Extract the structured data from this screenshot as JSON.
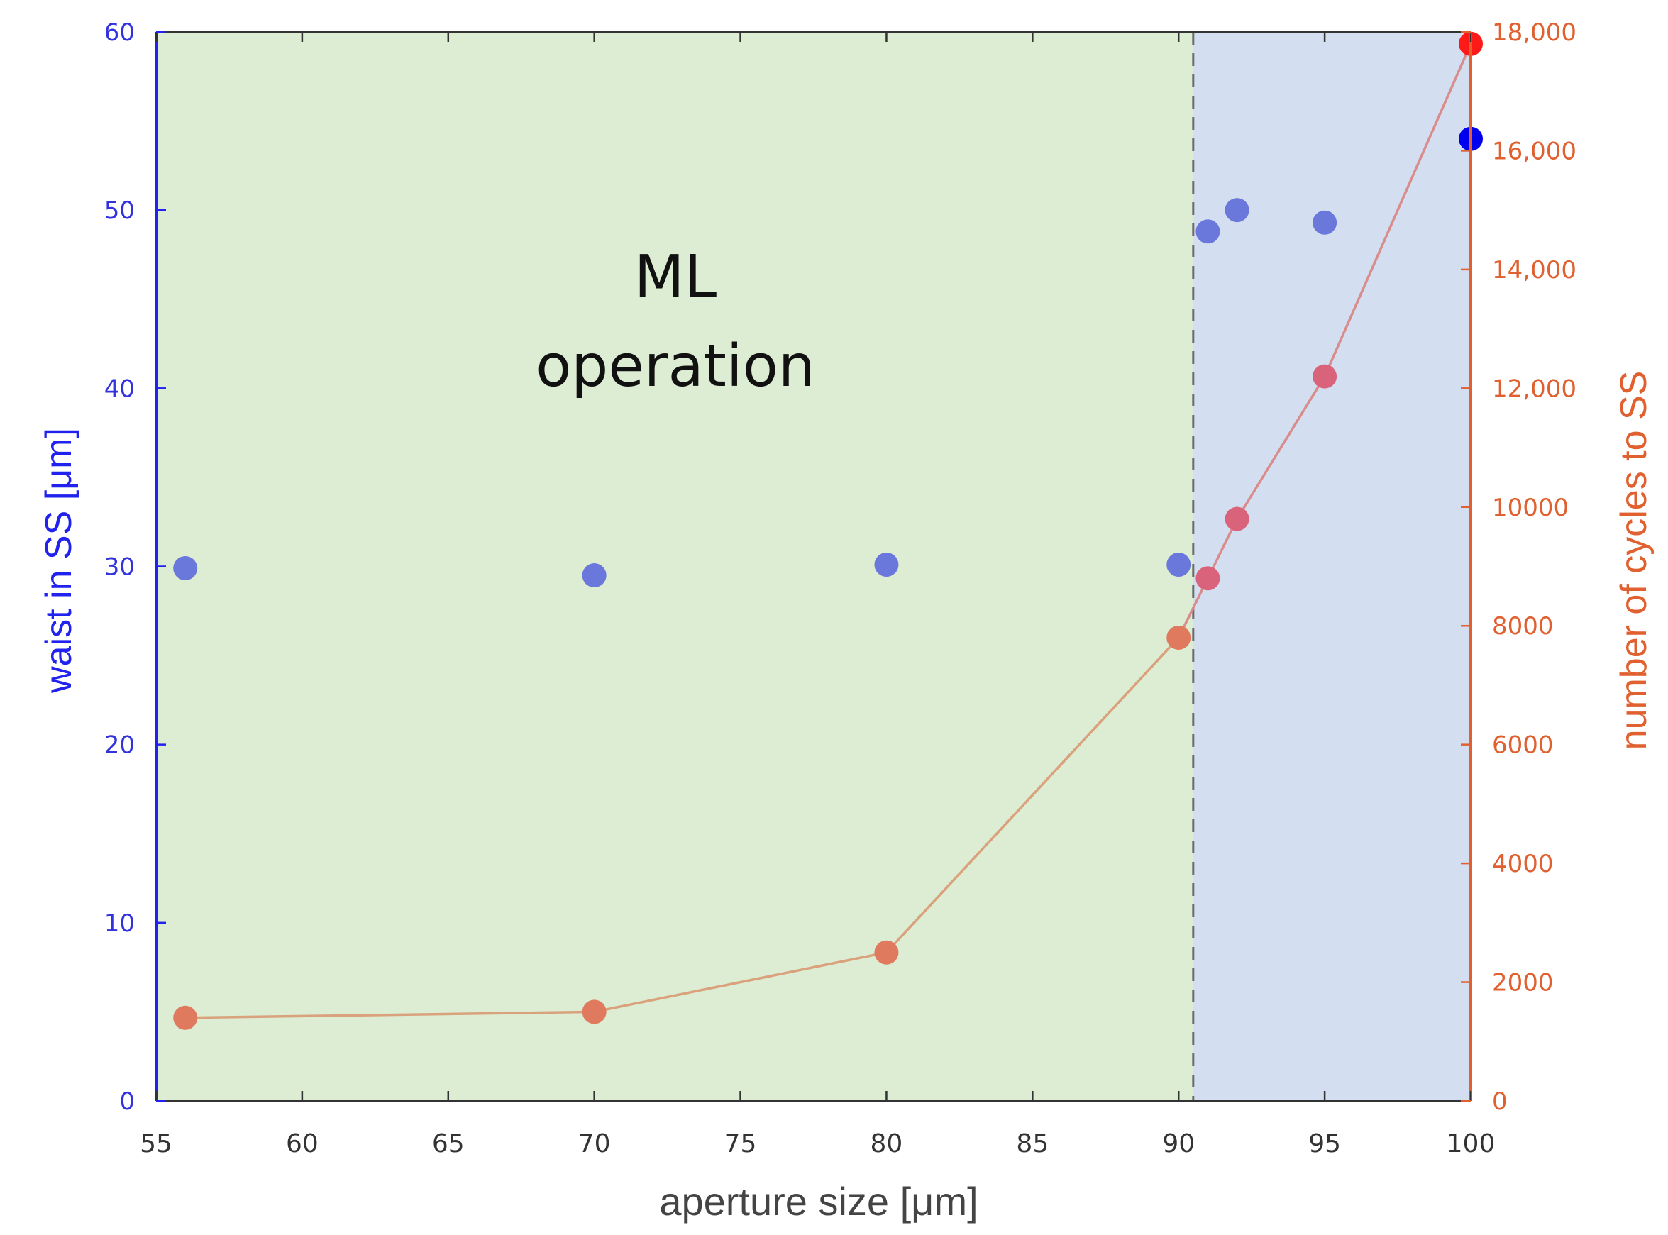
{
  "chart_data": {
    "type": "scatter",
    "xlabel": "aperture size [μm]",
    "ylabel_left": "waist in SS [μm]",
    "ylabel_right": "number of cycles to SS",
    "xlim": [
      55,
      100
    ],
    "ylim_left": [
      0,
      60
    ],
    "ylim_right": [
      0,
      18000
    ],
    "x_ticks": [
      "55",
      "60",
      "65",
      "70",
      "75",
      "80",
      "85",
      "90",
      "95",
      "100"
    ],
    "y_left_ticks": [
      "0",
      "10",
      "20",
      "30",
      "40",
      "50",
      "60"
    ],
    "y_right_ticks": [
      "0",
      "2000",
      "4000",
      "6000",
      "8000",
      "10000",
      "12,000",
      "14,000",
      "16,000",
      "18,000"
    ],
    "regions": [
      {
        "label": "ML operation",
        "x_from": 55,
        "x_to": 90.5,
        "color": "#dcedd3"
      },
      {
        "label": "",
        "x_from": 90.5,
        "x_to": 100,
        "color": "#d3dff0"
      }
    ],
    "boundary_x": 90.5,
    "annotation": {
      "line1": "ML",
      "line2": "operation"
    },
    "series": [
      {
        "name": "waist in SS",
        "axis": "left",
        "color": "#6a78dc",
        "highlight_color": "#0000ee",
        "points": [
          {
            "x": 56,
            "y": 29.9
          },
          {
            "x": 70,
            "y": 29.5
          },
          {
            "x": 80,
            "y": 30.1
          },
          {
            "x": 90,
            "y": 30.1
          },
          {
            "x": 91,
            "y": 48.8
          },
          {
            "x": 92,
            "y": 50.0
          },
          {
            "x": 95,
            "y": 49.3
          },
          {
            "x": 100,
            "y": 54.0,
            "highlight": true
          }
        ]
      },
      {
        "name": "number of cycles to SS",
        "axis": "right",
        "color": "#e07a5f",
        "color_late": "#d9637a",
        "highlight_color": "#ff1a1a",
        "line_color": "#d9a27c",
        "line_color_late": "#d98c8c",
        "points": [
          {
            "x": 56,
            "y": 1400
          },
          {
            "x": 70,
            "y": 1500
          },
          {
            "x": 80,
            "y": 2500
          },
          {
            "x": 90,
            "y": 7800
          },
          {
            "x": 91,
            "y": 8800
          },
          {
            "x": 92,
            "y": 9800
          },
          {
            "x": 95,
            "y": 12200
          },
          {
            "x": 100,
            "y": 17800,
            "highlight": true
          }
        ]
      }
    ]
  }
}
